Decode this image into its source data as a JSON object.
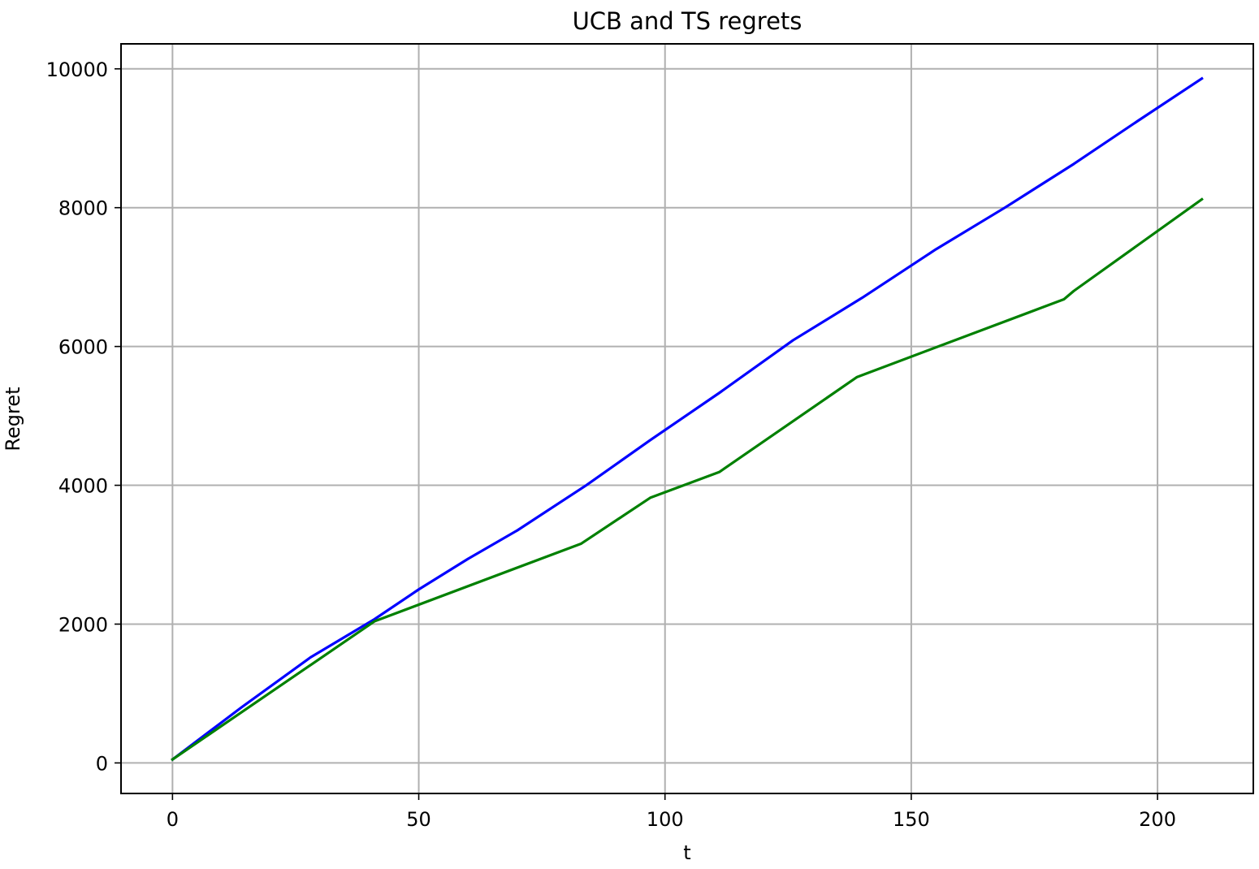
{
  "chart_data": {
    "type": "line",
    "title": "UCB and TS regrets",
    "xlabel": "t",
    "ylabel": "Regret",
    "xlim": [
      -10.45,
      219.45
    ],
    "ylim": [
      -440,
      10360
    ],
    "xticks": [
      0,
      50,
      100,
      150,
      200
    ],
    "yticks": [
      0,
      2000,
      4000,
      6000,
      8000,
      10000
    ],
    "grid": true,
    "legend": "none",
    "series": [
      {
        "color": "#0000ff",
        "x": [
          0,
          14,
          28,
          41,
          50,
          60,
          70,
          84,
          97,
          111,
          126,
          140,
          155,
          169,
          183,
          196,
          209
        ],
        "y": [
          50,
          800,
          1520,
          2070,
          2500,
          2940,
          3350,
          4000,
          4650,
          5330,
          6090,
          6700,
          7400,
          8000,
          8630,
          9250,
          9860
        ]
      },
      {
        "color": "#008000",
        "x": [
          0,
          41,
          83,
          97,
          111,
          139,
          181,
          183,
          209
        ],
        "y": [
          50,
          2040,
          3160,
          3820,
          4190,
          5560,
          6680,
          6800,
          8120
        ]
      }
    ]
  }
}
